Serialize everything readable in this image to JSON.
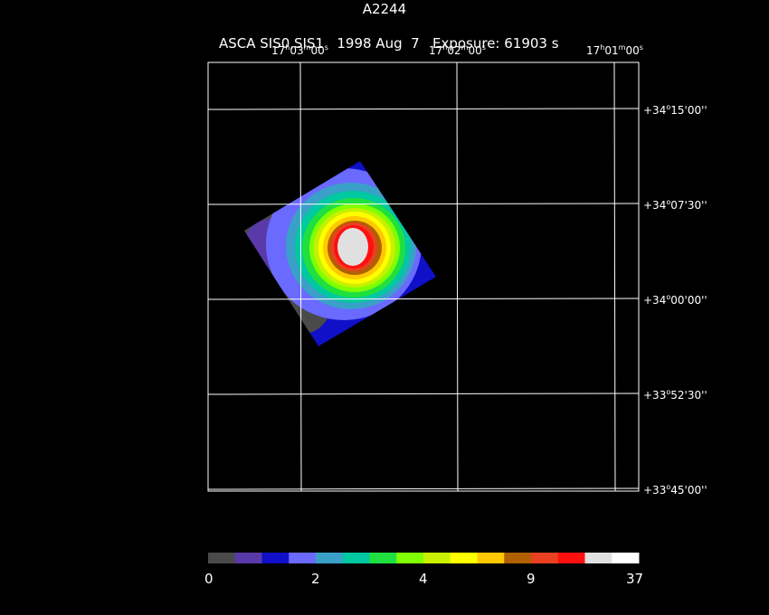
{
  "header": {
    "object": "A2244",
    "instrument": "ASCA SIS0,SIS1",
    "date": "1998 Aug  7",
    "exposure": "Exposure: 61903 s"
  },
  "ra_labels": [
    {
      "h": "17",
      "m": "03",
      "s": "00"
    },
    {
      "h": "17",
      "m": "02",
      "s": "00"
    },
    {
      "h": "17",
      "m": "01",
      "s": "00"
    }
  ],
  "dec_labels": [
    {
      "d": "+34",
      "m": "15",
      "s": "00"
    },
    {
      "d": "+34",
      "m": "07",
      "s": "30"
    },
    {
      "d": "+34",
      "m": "00",
      "s": "00"
    },
    {
      "d": "+33",
      "m": "52",
      "s": "30"
    },
    {
      "d": "+33",
      "m": "45",
      "s": "00"
    }
  ],
  "colorbar": {
    "colors": [
      "#4a4a4a",
      "#5a3aa8",
      "#1010c8",
      "#6a6aff",
      "#3aa0c8",
      "#00c8a0",
      "#20e040",
      "#80ff00",
      "#c8f000",
      "#ffff00",
      "#ffc800",
      "#b06000",
      "#e84020",
      "#ff1010",
      "#e0e0e0",
      "#ffffff"
    ],
    "tick_labels": [
      "0",
      "2",
      "4",
      "9",
      "37"
    ]
  }
}
